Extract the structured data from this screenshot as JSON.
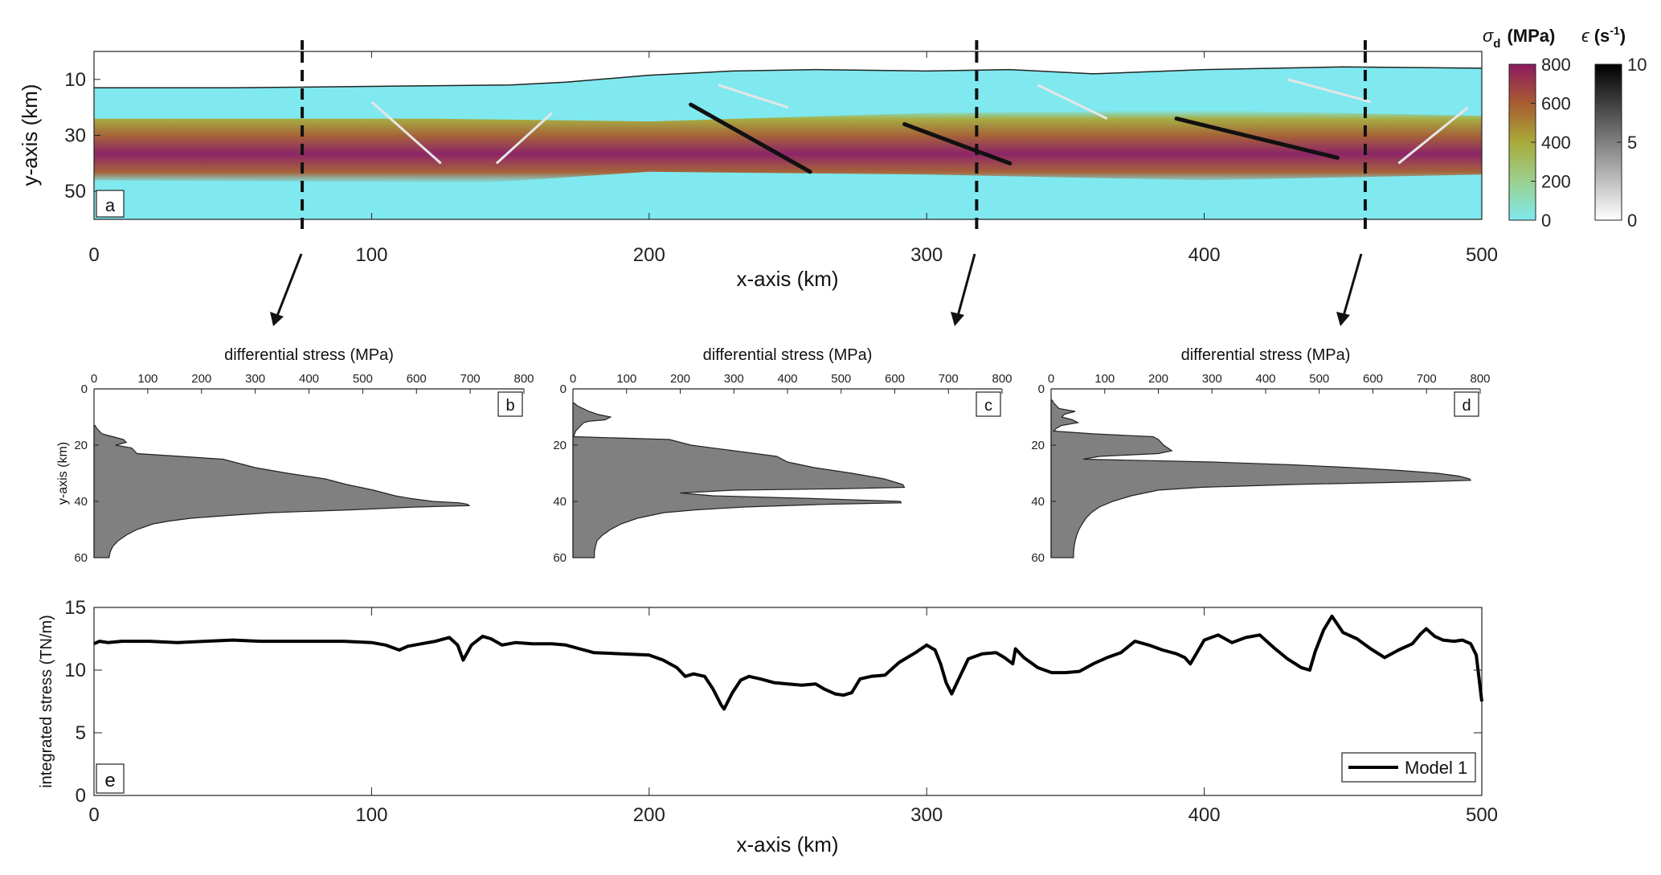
{
  "chart_data": [
    {
      "panel": "a",
      "type": "heatmap",
      "xlabel": "x-axis (km)",
      "ylabel": "y-axis (km)",
      "xlim": [
        0,
        500
      ],
      "ylim": [
        0,
        60
      ],
      "y_reversed": true,
      "x_ticks": [
        0,
        100,
        200,
        300,
        400,
        500
      ],
      "y_ticks": [
        10,
        30,
        50
      ],
      "fields": [
        {
          "symbol": "σ",
          "subscript": "d",
          "unit": "(MPa)",
          "range": [
            0,
            800
          ],
          "ticks": [
            0,
            200,
            400,
            600,
            800
          ],
          "colors": [
            "#7fe9ef",
            "#9bd18e",
            "#a9aa3a",
            "#a85c2f",
            "#8e1b62"
          ]
        },
        {
          "symbol": "ϵ",
          "unit_before": "(s",
          "superscript": "-1",
          "unit_after": ")",
          "range": [
            0,
            10
          ],
          "ticks": [
            0,
            5,
            10
          ],
          "colors": [
            "#ffffff",
            "#000000"
          ]
        }
      ],
      "surface_x": [
        0,
        50,
        100,
        150,
        170,
        200,
        230,
        260,
        300,
        330,
        360,
        400,
        450,
        500
      ],
      "surface_y": [
        13,
        13,
        12.5,
        12,
        11,
        8.5,
        7,
        6.5,
        7,
        6.5,
        8,
        6.5,
        5.5,
        6
      ],
      "profile_lines_x": [
        75,
        318,
        458
      ]
    },
    {
      "panel": "b",
      "type": "area",
      "xlabel": "differential stress (MPa)",
      "ylabel": "y-axis (km)",
      "xlim": [
        0,
        800
      ],
      "ylim": [
        0,
        60
      ],
      "y_reversed": true,
      "x_ticks": [
        0,
        100,
        200,
        300,
        400,
        500,
        600,
        700,
        800
      ],
      "y_ticks": [
        0,
        20,
        40,
        60
      ],
      "depth": [
        13,
        14,
        16,
        17,
        18,
        19,
        20,
        21,
        22,
        23,
        25,
        28,
        30,
        32,
        34,
        36,
        38,
        39,
        40,
        40.5,
        41,
        41.5,
        42,
        43,
        44,
        45,
        46,
        47,
        48,
        50,
        52,
        54,
        56,
        58,
        60
      ],
      "stress": [
        2,
        5,
        15,
        35,
        55,
        60,
        40,
        70,
        75,
        80,
        240,
        300,
        360,
        430,
        470,
        520,
        560,
        590,
        630,
        680,
        695,
        698,
        600,
        480,
        330,
        250,
        180,
        140,
        110,
        80,
        60,
        45,
        35,
        30,
        28
      ]
    },
    {
      "panel": "c",
      "type": "area",
      "xlabel": "differential stress (MPa)",
      "ylabel": "",
      "xlim": [
        0,
        800
      ],
      "ylim": [
        0,
        60
      ],
      "y_reversed": true,
      "x_ticks": [
        0,
        100,
        200,
        300,
        400,
        500,
        600,
        700,
        800
      ],
      "y_ticks": [
        0,
        20,
        40,
        60
      ],
      "depth": [
        5,
        6,
        8,
        9,
        10,
        11,
        11.5,
        12,
        13,
        14,
        15,
        16,
        17,
        18,
        20,
        22,
        24,
        26,
        28,
        30,
        32,
        34,
        35,
        35.5,
        36,
        37,
        38,
        39,
        40,
        40.5,
        41,
        42,
        43,
        44,
        46,
        48,
        50,
        52,
        54,
        56,
        58,
        60
      ],
      "stress": [
        2,
        8,
        30,
        45,
        70,
        60,
        30,
        20,
        15,
        10,
        5,
        3,
        2,
        180,
        220,
        300,
        380,
        400,
        450,
        520,
        580,
        615,
        618,
        500,
        300,
        200,
        260,
        450,
        610,
        612,
        480,
        320,
        230,
        170,
        120,
        90,
        70,
        55,
        45,
        42,
        40,
        40
      ]
    },
    {
      "panel": "d",
      "type": "area",
      "xlabel": "differential stress (MPa)",
      "ylabel": "",
      "xlim": [
        0,
        800
      ],
      "ylim": [
        0,
        60
      ],
      "y_reversed": true,
      "x_ticks": [
        0,
        100,
        200,
        300,
        400,
        500,
        600,
        700,
        800
      ],
      "y_ticks": [
        0,
        20,
        40,
        60
      ],
      "depth": [
        4,
        5,
        7,
        8,
        9,
        10,
        11,
        12,
        13,
        14,
        15,
        16,
        17,
        18,
        20,
        22,
        23,
        24,
        25,
        26,
        27,
        28,
        29,
        30,
        31,
        32,
        32.5,
        33,
        34,
        35,
        36,
        38,
        40,
        42,
        44,
        46,
        48,
        50,
        52,
        54,
        56,
        58,
        60
      ],
      "stress": [
        2,
        5,
        15,
        45,
        25,
        20,
        40,
        50,
        20,
        10,
        5,
        80,
        190,
        200,
        210,
        225,
        200,
        90,
        60,
        300,
        450,
        560,
        650,
        720,
        760,
        780,
        782,
        700,
        450,
        280,
        200,
        150,
        115,
        90,
        75,
        65,
        58,
        52,
        48,
        45,
        43,
        42,
        42
      ]
    },
    {
      "panel": "e",
      "type": "line",
      "xlabel": "x-axis (km)",
      "ylabel": "integrated stress (TN/m)",
      "xlim": [
        0,
        500
      ],
      "ylim": [
        0,
        15
      ],
      "x_ticks": [
        0,
        100,
        200,
        300,
        400,
        500
      ],
      "y_ticks": [
        0,
        5,
        10,
        15
      ],
      "legend_position": "bottom-right",
      "series": [
        {
          "name": "Model 1",
          "x": [
            0,
            2,
            5,
            10,
            20,
            30,
            40,
            50,
            60,
            70,
            80,
            90,
            100,
            105,
            110,
            113,
            118,
            123,
            128,
            131,
            133,
            136,
            140,
            143,
            147,
            152,
            158,
            165,
            170,
            175,
            180,
            190,
            200,
            205,
            210,
            213,
            216,
            220,
            223,
            226,
            227,
            230,
            233,
            236,
            240,
            245,
            250,
            255,
            260,
            263,
            267,
            270,
            273,
            276,
            280,
            285,
            290,
            293,
            296,
            300,
            303,
            305,
            307,
            309,
            312,
            315,
            320,
            325,
            328,
            331,
            332,
            335,
            340,
            345,
            350,
            355,
            360,
            365,
            370,
            375,
            380,
            385,
            390,
            393,
            395,
            400,
            405,
            410,
            415,
            420,
            425,
            430,
            435,
            438,
            440,
            443,
            446,
            450,
            455,
            460,
            465,
            470,
            475,
            478,
            480,
            483,
            486,
            490,
            493,
            496,
            498,
            500
          ],
          "y": [
            12.1,
            12.3,
            12.2,
            12.3,
            12.3,
            12.2,
            12.3,
            12.4,
            12.3,
            12.3,
            12.3,
            12.3,
            12.2,
            12.0,
            11.6,
            11.9,
            12.1,
            12.3,
            12.6,
            12.0,
            10.8,
            12.0,
            12.7,
            12.5,
            12.0,
            12.2,
            12.1,
            12.1,
            12.0,
            11.7,
            11.4,
            11.3,
            11.2,
            10.8,
            10.2,
            9.5,
            9.7,
            9.5,
            8.5,
            7.2,
            6.9,
            8.2,
            9.2,
            9.5,
            9.3,
            9.0,
            8.9,
            8.8,
            8.9,
            8.5,
            8.1,
            8.0,
            8.2,
            9.3,
            9.5,
            9.6,
            10.6,
            11.0,
            11.4,
            12.0,
            11.6,
            10.5,
            9.0,
            8.1,
            9.5,
            10.9,
            11.3,
            11.4,
            11.0,
            10.5,
            11.7,
            11.0,
            10.2,
            9.8,
            9.8,
            9.9,
            10.5,
            11.0,
            11.4,
            12.3,
            12.0,
            11.6,
            11.3,
            11.0,
            10.5,
            12.4,
            12.8,
            12.2,
            12.6,
            12.8,
            11.8,
            10.9,
            10.2,
            10.0,
            11.5,
            13.2,
            14.3,
            13.0,
            12.5,
            11.7,
            11.0,
            11.6,
            12.1,
            12.9,
            13.3,
            12.7,
            12.4,
            12.3,
            12.4,
            12.1,
            11.2,
            7.5
          ]
        }
      ]
    }
  ]
}
